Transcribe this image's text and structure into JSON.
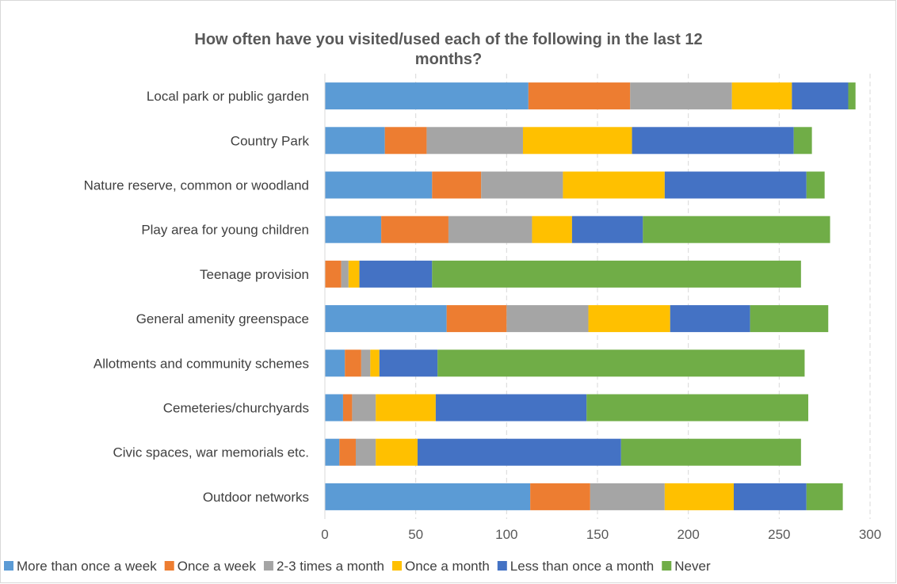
{
  "chart_data": {
    "type": "bar",
    "orientation": "horizontal",
    "stacked": true,
    "title": "How often have you visited/used each of the following in the last 12 months?",
    "title_lines": [
      "How often have you visited/used each of the following in the last 12",
      "months?"
    ],
    "categories": [
      "Local park or public garden",
      "Country Park",
      "Nature reserve, common or woodland",
      "Play area for young children",
      "Teenage provision",
      "General amenity greenspace",
      "Allotments and community schemes",
      "Cemeteries/churchyards",
      "Civic spaces, war memorials etc.",
      "Outdoor networks"
    ],
    "series": [
      {
        "name": "More than once a week",
        "color": "#5B9BD5",
        "values": [
          112,
          33,
          59,
          31,
          0,
          67,
          11,
          10,
          8,
          113
        ]
      },
      {
        "name": "Once a week",
        "color": "#ED7D31",
        "values": [
          56,
          23,
          27,
          37,
          9,
          33,
          9,
          5,
          9,
          33
        ]
      },
      {
        "name": "2-3 times a month",
        "color": "#A5A5A5",
        "values": [
          56,
          53,
          45,
          46,
          4,
          45,
          5,
          13,
          11,
          41
        ]
      },
      {
        "name": "Once a month",
        "color": "#FFC000",
        "values": [
          33,
          60,
          56,
          22,
          6,
          45,
          5,
          33,
          23,
          38
        ]
      },
      {
        "name": "Less than once a month",
        "color": "#4472C4",
        "values": [
          31,
          89,
          78,
          39,
          40,
          44,
          32,
          83,
          112,
          40
        ]
      },
      {
        "name": "Never",
        "color": "#70AD47",
        "values": [
          4,
          10,
          10,
          103,
          203,
          43,
          202,
          122,
          99,
          20
        ]
      }
    ],
    "xlim": [
      0,
      300
    ],
    "x_ticks": [
      "0",
      "50",
      "100",
      "150",
      "200",
      "250",
      "300"
    ],
    "gridlines": "vertical, dashed",
    "legend_position": "bottom",
    "xlabel": "",
    "ylabel": ""
  }
}
